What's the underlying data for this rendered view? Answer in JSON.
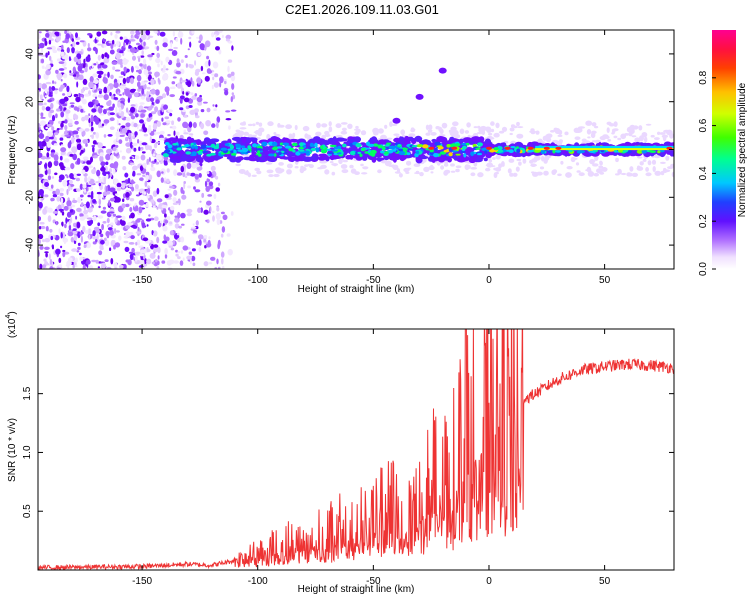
{
  "title": "C2E1.2026.109.11.03.G01",
  "chart_data": [
    {
      "type": "heatmap",
      "xlabel": "Height of straight line (km)",
      "ylabel": "Frequency (Hz)",
      "xlim": [
        -195,
        80
      ],
      "ylim": [
        -50,
        50
      ],
      "xticks": [
        -150,
        -100,
        -50,
        0,
        50
      ],
      "yticks": [
        -40,
        -20,
        0,
        20,
        40
      ],
      "colorbar": {
        "label": "Normalized spectral amplitude",
        "range": [
          0,
          1
        ],
        "ticks": [
          0.0,
          0.2,
          0.4,
          0.6,
          0.8
        ],
        "tick_labels": [
          "0.0",
          "0.2",
          "0.4",
          "0.6",
          "0.8"
        ]
      },
      "colormap": [
        "#ffffff",
        "#e8d0ff",
        "#b070ff",
        "#7010ff",
        "#2030ff",
        "#00c8ff",
        "#00ff60",
        "#d0ff00",
        "#ffd000",
        "#ff3000",
        "#ff0090"
      ],
      "features": {
        "noise_region_x": [
          -195,
          -110
        ],
        "signal_band_x": [
          -140,
          80
        ],
        "signal_center_hz": 0,
        "feature_branch": [
          [
            -40,
            12
          ],
          [
            -30,
            22
          ],
          [
            -20,
            33
          ]
        ]
      }
    },
    {
      "type": "line",
      "xlabel": "Height of straight line (km)",
      "ylabel": "SNR (10 * v/v)",
      "y_multiplier": "(x10",
      "y_multiplier_exp": "4",
      "y_multiplier_close": ")",
      "xlim": [
        -195,
        80
      ],
      "ylim": [
        0,
        2.05
      ],
      "xticks": [
        -150,
        -100,
        -50,
        0,
        50
      ],
      "yticks": [
        0.5,
        1.0,
        1.5
      ],
      "ytick_labels": [
        "0.5",
        "1.0",
        "1.5"
      ],
      "color": "#ee3333",
      "series": [
        {
          "name": "SNR",
          "x": [
            -195,
            -150,
            -130,
            -120,
            -110,
            -100,
            -90,
            -80,
            -70,
            -60,
            -50,
            -40,
            -30,
            -20,
            -15,
            -10,
            -5,
            0,
            5,
            10,
            15,
            20,
            30,
            40,
            50,
            60,
            70,
            80
          ],
          "y": [
            0.02,
            0.03,
            0.05,
            0.04,
            0.08,
            0.15,
            0.22,
            0.28,
            0.32,
            0.38,
            0.45,
            0.55,
            0.65,
            0.85,
            1.0,
            1.15,
            1.25,
            1.3,
            1.35,
            1.4,
            1.45,
            1.5,
            1.62,
            1.7,
            1.73,
            1.75,
            1.74,
            1.72
          ]
        }
      ]
    }
  ]
}
